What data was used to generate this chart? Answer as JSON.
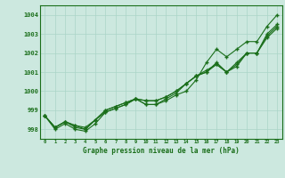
{
  "title": "Graphe pression niveau de la mer (hPa)",
  "x_ticks": [
    0,
    1,
    2,
    3,
    4,
    5,
    6,
    7,
    8,
    9,
    10,
    11,
    12,
    13,
    14,
    15,
    16,
    17,
    18,
    19,
    20,
    21,
    22,
    23
  ],
  "ylim": [
    997.5,
    1004.5
  ],
  "yticks": [
    998,
    999,
    1000,
    1001,
    1002,
    1003,
    1004
  ],
  "line_color": "#1a6e1a",
  "bg_color": "#cce8df",
  "grid_color": "#aad4c8",
  "series": [
    [
      998.7,
      998.1,
      998.4,
      998.2,
      998.1,
      998.5,
      998.9,
      999.1,
      999.3,
      999.6,
      999.3,
      999.3,
      999.6,
      999.9,
      1000.4,
      1000.8,
      1001.0,
      1001.5,
      1001.0,
      1001.5,
      1002.0,
      1002.0,
      1003.0,
      1003.5
    ],
    [
      998.7,
      998.1,
      998.4,
      998.1,
      998.0,
      998.5,
      999.0,
      999.2,
      999.4,
      999.6,
      999.5,
      999.5,
      999.7,
      1000.0,
      1000.4,
      1000.8,
      1001.1,
      1001.4,
      1001.0,
      1001.4,
      1002.0,
      1002.0,
      1002.9,
      1003.4
    ],
    [
      998.7,
      998.1,
      998.4,
      998.2,
      998.0,
      998.5,
      999.0,
      999.2,
      999.4,
      999.6,
      999.5,
      999.5,
      999.7,
      1000.0,
      1000.4,
      1000.8,
      1001.0,
      1001.4,
      1001.0,
      1001.3,
      1002.0,
      1002.0,
      1002.8,
      1003.3
    ],
    [
      998.7,
      998.0,
      998.3,
      998.0,
      997.9,
      998.3,
      998.9,
      999.1,
      999.3,
      999.6,
      999.3,
      999.3,
      999.5,
      999.8,
      1000.0,
      1000.6,
      1001.5,
      1002.2,
      1001.8,
      1002.2,
      1002.6,
      1002.6,
      1003.4,
      1004.0
    ]
  ]
}
